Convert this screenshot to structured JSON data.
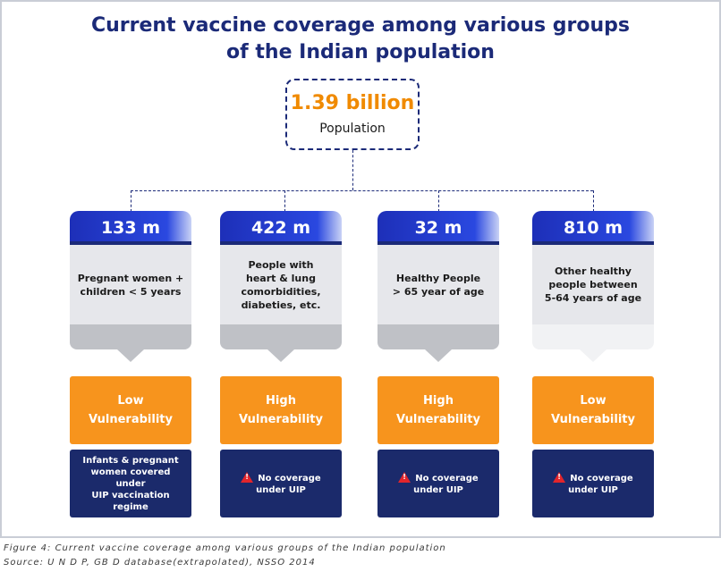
{
  "title": {
    "line1": "Current vaccine coverage among various groups",
    "line2": "of the Indian population"
  },
  "population": {
    "value": "1.39 billion",
    "label": "Population"
  },
  "groups": [
    {
      "count": "133 m",
      "desc": [
        "Pregnant women +",
        "children < 5 years"
      ],
      "vulnerability": [
        "Low",
        "Vulnerability"
      ],
      "coverage": [
        "Infants & pregnant",
        "women covered under",
        "UIP vaccination regime"
      ],
      "warning": false
    },
    {
      "count": "422 m",
      "desc": [
        "People with",
        "heart & lung",
        "comorbidities,",
        "diabeties, etc."
      ],
      "vulnerability": [
        "High",
        "Vulnerability"
      ],
      "coverage": [
        "No coverage",
        "under UIP"
      ],
      "warning": true
    },
    {
      "count": "32 m",
      "desc": [
        "Healthy People",
        "> 65 year  of age"
      ],
      "vulnerability": [
        "High",
        "Vulnerability"
      ],
      "coverage": [
        "No coverage",
        "under UIP"
      ],
      "warning": true
    },
    {
      "count": "810 m",
      "desc": [
        "Other healthy",
        "people between",
        "5-64 years of age"
      ],
      "vulnerability": [
        "Low",
        "Vulnerability"
      ],
      "coverage": [
        "No coverage",
        "under UIP"
      ],
      "warning": true
    }
  ],
  "caption": {
    "figure": "Figure 4: Current vaccine coverage among various groups of the Indian population",
    "source": "Source: U N D P, GB D database(extrapolated), NSSO 2014"
  },
  "colors": {
    "navy": "#1b2a78",
    "orange": "#f7941d",
    "accent_orange_text": "#f08a00",
    "dark_navy_box": "#1b2a6b",
    "warning_red": "#e3252b"
  },
  "icons": {
    "warning": "warning-triangle-icon"
  }
}
